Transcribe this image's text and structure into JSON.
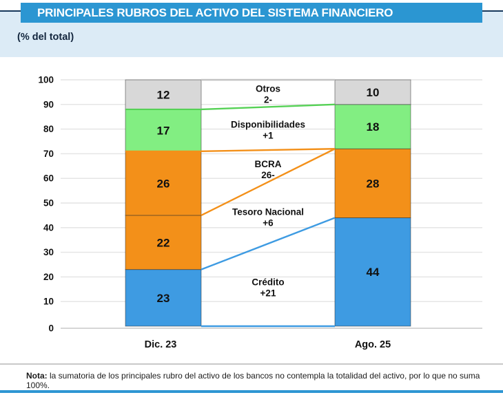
{
  "header": {
    "title": "PRINCIPALES RUBROS DEL ACTIVO DEL SISTEMA FINANCIERO",
    "subtitle": "(% del total)"
  },
  "chart_data": {
    "type": "bar",
    "variant": "stacked-columns-with-slope-connectors",
    "title": "PRINCIPALES RUBROS DEL ACTIVO DEL SISTEMA FINANCIERO",
    "unit_label": "(% del total)",
    "categories": [
      "Dic. 23",
      "Ago. 25"
    ],
    "series": [
      {
        "name": "Crédito",
        "values": [
          23,
          44
        ],
        "change_label": "+21",
        "color": "#3E9BE2",
        "line_color": "#3E9BE2",
        "edge_line": false,
        "label_y": 16
      },
      {
        "name": "Tesoro Nacional",
        "values": [
          22,
          28
        ],
        "change_label": "+6",
        "color": "#F39019",
        "line_color": "#F39019",
        "edge_line": false,
        "label_y": 44.5
      },
      {
        "name": "BCRA",
        "values": [
          26,
          0
        ],
        "change_label": "26-",
        "color": "#F39019",
        "line_color": "#F39019",
        "edge_line": true,
        "label_y": 64
      },
      {
        "name": "Disponibilidades",
        "values": [
          17,
          18
        ],
        "change_label": "+1",
        "color": "#82EE82",
        "line_color": "#55D155",
        "edge_line": true,
        "label_y": 80
      },
      {
        "name": "Otros",
        "values": [
          12,
          10
        ],
        "change_label": "2-",
        "color": "#D8D8D8",
        "line_color": "#C2C2C2",
        "edge_line": false,
        "label_y": 94.5
      }
    ],
    "ylim": [
      0,
      100
    ],
    "yticks": [
      0,
      10,
      20,
      30,
      40,
      50,
      60,
      70,
      80,
      90,
      100
    ],
    "grid": true,
    "legend": "none"
  },
  "note": {
    "label": "Nota:",
    "text": " la sumatoria de los principales rubro del activo de los bancos no contempla la totalidad del activo, por lo que no suma 100%."
  },
  "colors": {
    "banner": "#2B96D2",
    "band": "#DCEBF6",
    "navy": "#16375B",
    "bottom": "#2E96D3"
  }
}
